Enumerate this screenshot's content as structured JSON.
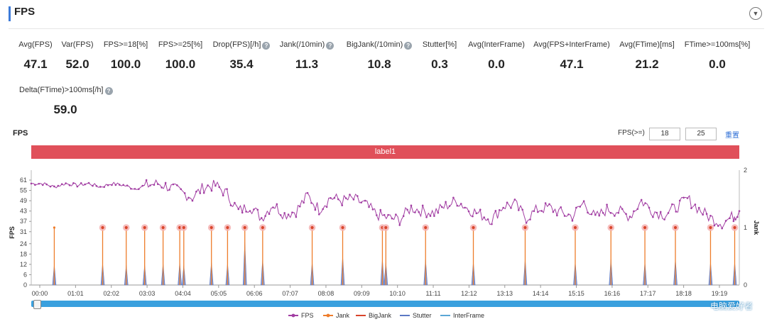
{
  "header": {
    "title": "FPS",
    "collapse_icon": "chevron-down-icon"
  },
  "metrics": [
    {
      "label": "Avg(FPS)",
      "value": "47.1",
      "help": false
    },
    {
      "label": "Var(FPS)",
      "value": "52.0",
      "help": false
    },
    {
      "label": "FPS>=18[%]",
      "value": "100.0",
      "help": false
    },
    {
      "label": "FPS>=25[%]",
      "value": "100.0",
      "help": false
    },
    {
      "label": "Drop(FPS)[/h]",
      "value": "35.4",
      "help": true
    },
    {
      "label": "Jank(/10min)",
      "value": "11.3",
      "help": true
    },
    {
      "label": "BigJank(/10min)",
      "value": "10.8",
      "help": true
    },
    {
      "label": "Stutter[%]",
      "value": "0.3",
      "help": false
    },
    {
      "label": "Avg(InterFrame)",
      "value": "0.0",
      "help": false
    },
    {
      "label": "Avg(FPS+InterFrame)",
      "value": "47.1",
      "help": false
    },
    {
      "label": "Avg(FTime)[ms]",
      "value": "21.2",
      "help": false
    },
    {
      "label": "FTime>=100ms[%]",
      "value": "0.0",
      "help": false
    },
    {
      "label": "Delta(FTime)>100ms[/h]",
      "value": "59.0",
      "help": true
    }
  ],
  "chart_section": {
    "title": "FPS",
    "threshold_label": "FPS(>=)",
    "threshold_1": "18",
    "threshold_2": "25",
    "reset_label": "重置",
    "band_label": "label1",
    "help_glyph": "?"
  },
  "watermark": "电脑爱好者",
  "colors": {
    "fps": "#a23ea3",
    "jank": "#ee7d2b",
    "bigjank": "#d9452b",
    "stutter": "#5b78c4",
    "interframe": "#5aa7d6",
    "band": "#e0505a",
    "accent": "#3d7bd9"
  },
  "chart_data": {
    "type": "line",
    "title": "",
    "ylabel_left": "FPS",
    "ylabel_right": "Jank",
    "y_left_ticks": [
      0,
      6,
      12,
      18,
      24,
      31,
      37,
      43,
      49,
      55,
      61
    ],
    "y_left_range": [
      0,
      61
    ],
    "y_right_ticks": [
      0,
      1,
      2
    ],
    "y_right_range": [
      0,
      2
    ],
    "x_ticks": [
      "00:00",
      "01:01",
      "02:02",
      "03:03",
      "04:04",
      "05:05",
      "06:06",
      "07:07",
      "08:08",
      "09:09",
      "10:10",
      "11:11",
      "12:12",
      "13:13",
      "14:14",
      "15:15",
      "16:16",
      "17:17",
      "18:18",
      "19:19"
    ],
    "x_range_seconds": [
      0,
      1230
    ],
    "legend": [
      "FPS",
      "Jank",
      "BigJank",
      "Stutter",
      "InterFrame"
    ],
    "legend_position": "bottom",
    "series": [
      {
        "name": "FPS",
        "x": [
          0,
          20,
          40,
          60,
          80,
          100,
          120,
          140,
          160,
          180,
          200,
          220,
          240,
          260,
          280,
          300,
          320,
          340,
          360,
          380,
          400,
          420,
          440,
          460,
          480,
          500,
          520,
          540,
          560,
          580,
          600,
          620,
          640,
          660,
          680,
          700,
          720,
          740,
          760,
          780,
          800,
          820,
          840,
          860,
          880,
          900,
          920,
          940,
          960,
          980,
          1000,
          1020,
          1040,
          1060,
          1080,
          1100,
          1120,
          1140,
          1160,
          1180,
          1200,
          1220,
          1230
        ],
        "y": [
          59,
          59,
          57,
          59,
          58,
          59,
          57,
          59,
          58,
          56,
          58,
          59,
          57,
          54,
          51,
          57,
          58,
          53,
          43,
          46,
          39,
          47,
          41,
          43,
          52,
          44,
          51,
          49,
          50,
          47,
          41,
          39,
          38,
          45,
          43,
          42,
          46,
          49,
          44,
          41,
          38,
          46,
          47,
          39,
          44,
          45,
          42,
          40,
          48,
          39,
          44,
          43,
          40,
          49,
          43,
          41,
          45,
          50,
          44,
          39,
          36,
          40,
          43
        ]
      },
      {
        "name": "Jank",
        "x": [
          40,
          124,
          165,
          197,
          229,
          258,
          265,
          313,
          341,
          371,
          402,
          488,
          541,
          610,
          616,
          685,
          768,
          858,
          945,
          1007,
          1066,
          1119,
          1180,
          1222
        ],
        "y": [
          1,
          1,
          1,
          1,
          1,
          1,
          1,
          1,
          1,
          1,
          1,
          1,
          1,
          1,
          1,
          1,
          1,
          1,
          1,
          1,
          1,
          1,
          1,
          1
        ]
      },
      {
        "name": "BigJank",
        "x": [
          124,
          165,
          197,
          229,
          258,
          265,
          313,
          341,
          371,
          402,
          488,
          541,
          610,
          616,
          685,
          768,
          858,
          945,
          1007,
          1066,
          1119,
          1180,
          1222
        ],
        "y": [
          1,
          1,
          1,
          1,
          1,
          1,
          1,
          1,
          1,
          1,
          1,
          1,
          1,
          1,
          1,
          1,
          1,
          1,
          1,
          1,
          1,
          1,
          1
        ]
      },
      {
        "name": "Stutter",
        "x": [
          40,
          124,
          165,
          197,
          229,
          258,
          265,
          313,
          341,
          371,
          402,
          488,
          541,
          610,
          616,
          685,
          768,
          858,
          945,
          1007,
          1066,
          1119,
          1180,
          1222
        ],
        "y": [
          0.35,
          0.38,
          0.35,
          0.35,
          0.38,
          0.4,
          0.35,
          0.4,
          0.38,
          0.75,
          0.45,
          0.4,
          0.5,
          0.45,
          0.4,
          0.45,
          0.4,
          0.45,
          0.4,
          0.45,
          0.4,
          0.45,
          0.4,
          0.4
        ]
      },
      {
        "name": "InterFrame",
        "x": [],
        "y": []
      }
    ]
  }
}
